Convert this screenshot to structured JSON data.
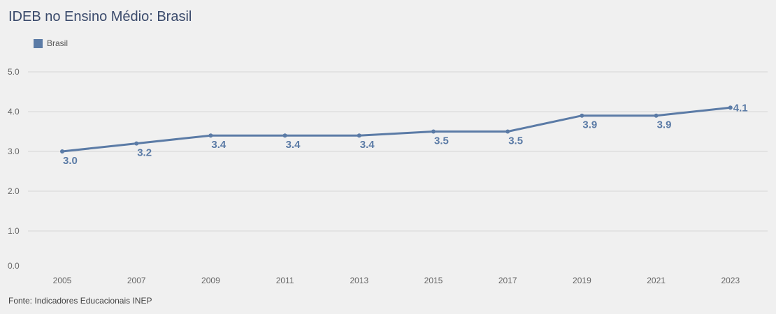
{
  "title": "IDEB no Ensino Médio: Brasil",
  "source": "Fonte: Indicadores Educacionais INEP",
  "colors": {
    "series": "#5b7ba6",
    "grid": "#d6d6d6",
    "tick": "#666666"
  },
  "chart_data": {
    "type": "line",
    "title": "IDEB no Ensino Médio: Brasil",
    "x": [
      "2005",
      "2007",
      "2009",
      "2011",
      "2013",
      "2015",
      "2017",
      "2019",
      "2021",
      "2023"
    ],
    "series": [
      {
        "name": "Brasil",
        "values": [
          3.0,
          3.2,
          3.4,
          3.4,
          3.4,
          3.5,
          3.5,
          3.9,
          3.9,
          4.1
        ]
      }
    ],
    "data_labels": [
      "3.0",
      "3.2",
      "3.4",
      "3.4",
      "3.4",
      "3.5",
      "3.5",
      "3.9",
      "3.9",
      "4.1"
    ],
    "y_ticks": [
      "0.0",
      "1.0",
      "2.0",
      "3.0",
      "4.0",
      "5.0"
    ],
    "ylim": [
      0,
      5
    ],
    "grid": true,
    "legend": "top-left"
  }
}
